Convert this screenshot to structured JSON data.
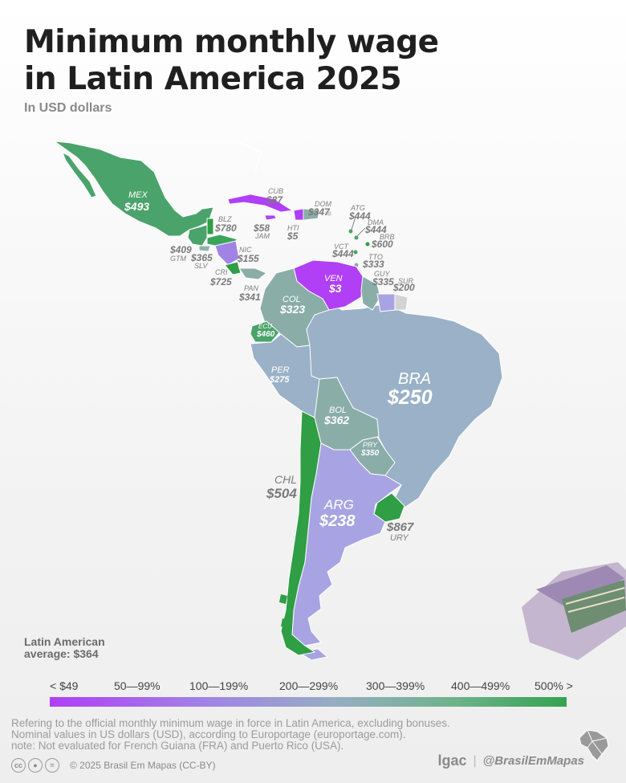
{
  "header": {
    "title_line1": "Minimum monthly wage",
    "title_line2": "in Latin America 2025",
    "subtitle": "In USD dollars"
  },
  "countries": {
    "mex": {
      "code": "MEX",
      "value": "$493"
    },
    "blz": {
      "code": "BLZ",
      "value": "$780"
    },
    "gtm": {
      "code": "GTM",
      "value": "$409"
    },
    "slv": {
      "code": "SLV",
      "value": "$365"
    },
    "nic": {
      "code": "NIC",
      "value": "$155"
    },
    "cri": {
      "code": "CRI",
      "value": "$725"
    },
    "pan": {
      "code": "PAN",
      "value": "$341"
    },
    "cub": {
      "code": "CUB",
      "value": "$87"
    },
    "jam": {
      "code": "JAM",
      "value": "$58"
    },
    "hti": {
      "code": "HTI",
      "value": "$5"
    },
    "dom": {
      "code": "DOM",
      "value": "$347"
    },
    "atg": {
      "code": "ATG",
      "value": "$444"
    },
    "dma": {
      "code": "DMA",
      "value": "$444"
    },
    "brb": {
      "code": "BRB",
      "value": "$600"
    },
    "vct": {
      "code": "VCT",
      "value": "$444"
    },
    "tto": {
      "code": "TTO",
      "value": "$333"
    },
    "guy": {
      "code": "GUY",
      "value": "$335"
    },
    "sur": {
      "code": "SUR",
      "value": "$200"
    },
    "ven": {
      "code": "VEN",
      "value": "$3"
    },
    "col": {
      "code": "COL",
      "value": "$323"
    },
    "ecu": {
      "code": "ECU",
      "value": "$460"
    },
    "per": {
      "code": "PER",
      "value": "$275"
    },
    "bra": {
      "code": "BRA",
      "value": "$250"
    },
    "bol": {
      "code": "BOL",
      "value": "$362"
    },
    "pry": {
      "code": "PRY",
      "value": "$350"
    },
    "chl": {
      "code": "CHL",
      "value": "$504"
    },
    "arg": {
      "code": "ARG",
      "value": "$238"
    },
    "ury": {
      "code": "URY",
      "value": "$867"
    }
  },
  "average": {
    "line1": "Latin American",
    "line2": "average: $364"
  },
  "legend": {
    "labels": [
      "< $49",
      "50—99%",
      "100—199%",
      "200—299%",
      "300—399%",
      "400—499%",
      "500% >"
    ],
    "colors": [
      "#b03ff5",
      "#a183e6",
      "#96adc3",
      "#6fb28c",
      "#33a351"
    ]
  },
  "colors": {
    "purple": "#b03ff5",
    "lavender": "#a8a3e2",
    "blue_gray": "#9ab1c8",
    "teal_gray": "#8aada8",
    "green": "#4aa36a",
    "bright_green": "#2f9e45",
    "not_evaluated": "#d3d3d3"
  },
  "footer": {
    "line1": "Refering to the official monthly minimum wage in force in Latin America, excluding bonuses.",
    "line2": "Nominal values in US dollars (USD), according to Europortage (europortage.com).",
    "line3": "note: Not evaluated for French Guiana (FRA) and Puerto Rico (USA).",
    "copyright": "© 2025  Brasil Em Mapas (CC-BY)",
    "logo_text": "lgac",
    "separator": "|",
    "handle": "@BrasilEmMapas"
  },
  "icons": [
    "cc-icon",
    "by-icon",
    "nd-icon",
    "brazil-map-logo-icon",
    "wallet-illustration"
  ]
}
